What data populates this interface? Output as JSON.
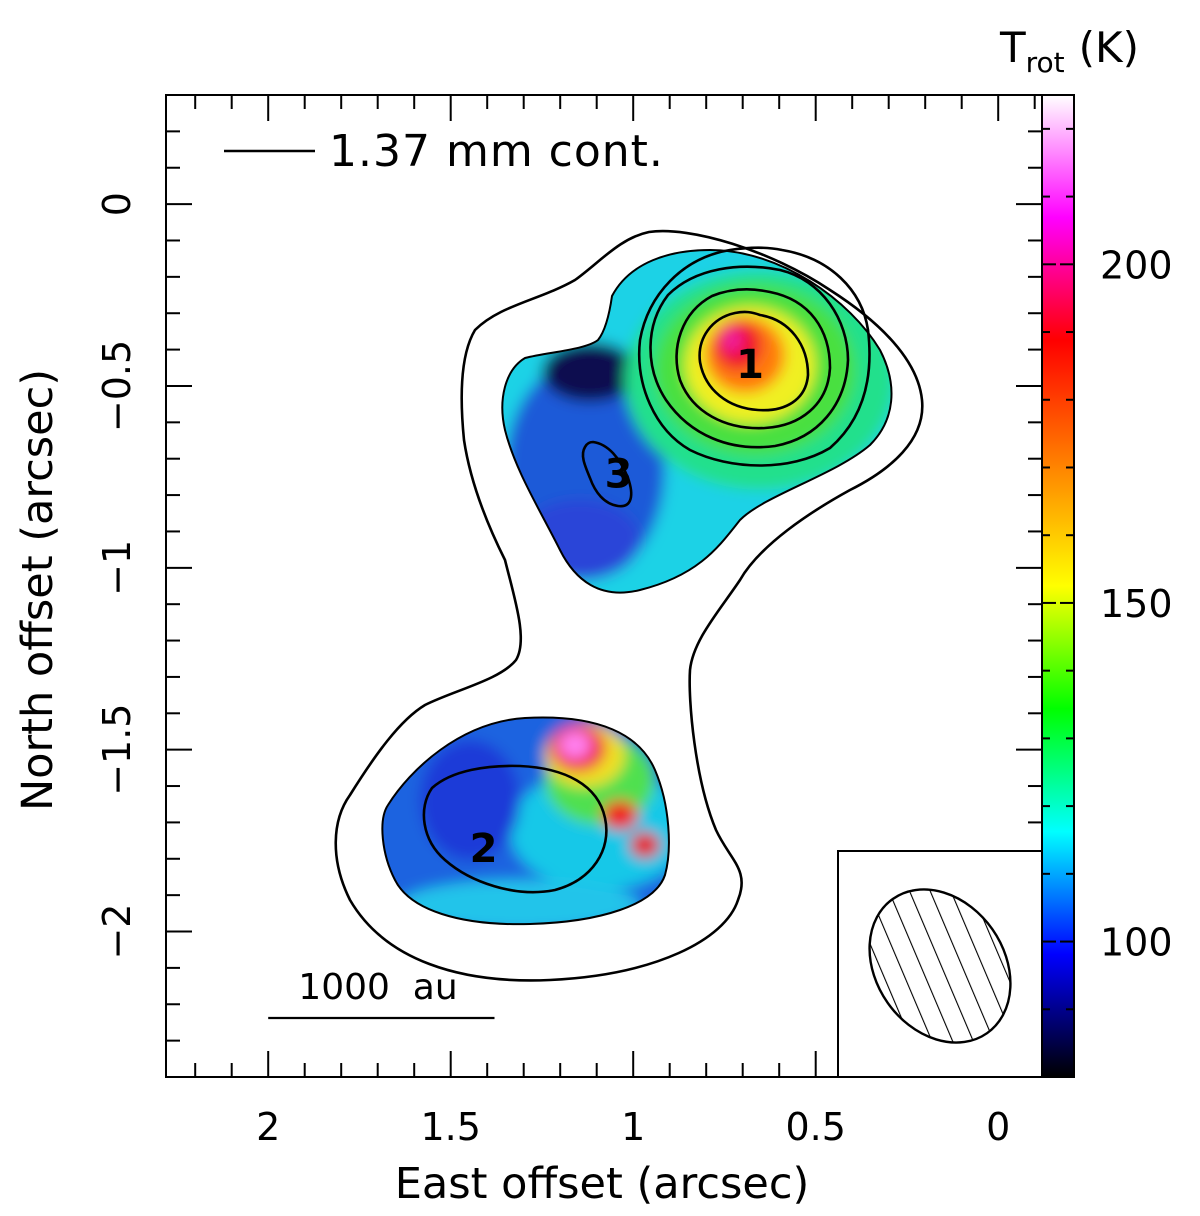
{
  "chart_data": {
    "type": "heatmap",
    "xlabel": "East offset (arcsec)",
    "ylabel": "North offset (arcsec)",
    "xlim": [
      2.28,
      -0.12
    ],
    "ylim": [
      -2.4,
      0.3
    ],
    "x_ticks": [
      2,
      1.5,
      1,
      0.5,
      0
    ],
    "x_tick_labels": [
      "2",
      "1.5",
      "1",
      "0.5",
      "0"
    ],
    "y_ticks": [
      0,
      -0.5,
      -1,
      -1.5,
      -2
    ],
    "y_tick_labels": [
      "0",
      "−0.5",
      "−1",
      "−1.5",
      "−2"
    ],
    "colorbar": {
      "label_main": "T",
      "label_sub": "rot",
      "label_unit": "(K)",
      "min": 80,
      "max": 225,
      "ticks": [
        100,
        150,
        200
      ],
      "tick_labels": [
        "100",
        "150",
        "200"
      ],
      "colormap": [
        "#000000",
        "#0000ff",
        "#00ffff",
        "#00ff00",
        "#ffff00",
        "#ff8000",
        "#ff0000",
        "#ff00ff",
        "#ffffff"
      ]
    },
    "legend": {
      "line_label": "— 1.37 mm cont.",
      "text": "1.37 mm cont.",
      "placement": "top-left"
    },
    "scale_bar": {
      "label": "1000  au",
      "length_arcsec": 0.62
    },
    "beam": {
      "major_arcsec": 0.4,
      "minor_arcsec": 0.27,
      "position_angle_deg": 35
    },
    "sources": [
      {
        "label": "1",
        "x": 0.68,
        "y": -0.44
      },
      {
        "label": "2",
        "x": 1.41,
        "y": -1.77
      },
      {
        "label": "3",
        "x": 1.04,
        "y": -0.74
      }
    ],
    "temperature_peaks": [
      {
        "region": "source 1",
        "x": 0.72,
        "y": -0.4,
        "T": 195
      },
      {
        "region": "source 2 ridge",
        "x": 1.15,
        "y": -1.5,
        "T": 220
      },
      {
        "region": "source 2 ridge",
        "x": 1.02,
        "y": -1.68,
        "T": 185
      },
      {
        "region": "source 2 ridge",
        "x": 0.97,
        "y": -1.77,
        "T": 180
      },
      {
        "region": "source 3 area",
        "x": 1.15,
        "y": -0.45,
        "T": 82
      }
    ]
  }
}
